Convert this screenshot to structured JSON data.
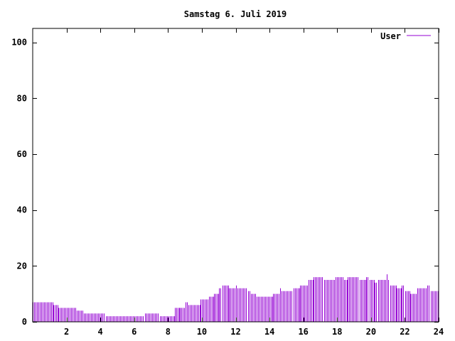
{
  "chart_data": {
    "type": "bar",
    "title": "Samstag 6. Juli 2019",
    "xlabel": "",
    "ylabel": "",
    "xlim": [
      0,
      24
    ],
    "ylim": [
      0,
      105
    ],
    "xticks": [
      2,
      4,
      6,
      8,
      10,
      12,
      14,
      16,
      18,
      20,
      22,
      24
    ],
    "yticks": [
      0,
      20,
      40,
      60,
      80,
      100
    ],
    "grid": false,
    "legend": "top-right",
    "colors": {
      "series": "#9400d3",
      "axis": "#000000",
      "background": "#ffffff"
    },
    "series": [
      {
        "name": "User",
        "segments": [
          {
            "from": 0.0,
            "to": 1.2,
            "value": 7
          },
          {
            "from": 1.2,
            "to": 1.5,
            "value": 6
          },
          {
            "from": 1.5,
            "to": 2.6,
            "value": 5
          },
          {
            "from": 2.6,
            "to": 3.0,
            "value": 4
          },
          {
            "from": 3.0,
            "to": 4.3,
            "value": 3
          },
          {
            "from": 4.3,
            "to": 6.6,
            "value": 2
          },
          {
            "from": 6.6,
            "to": 7.5,
            "value": 3
          },
          {
            "from": 7.5,
            "to": 8.4,
            "value": 2
          },
          {
            "from": 8.4,
            "to": 8.7,
            "value": 5
          },
          {
            "from": 8.7,
            "to": 9.0,
            "value": 5
          },
          {
            "from": 9.0,
            "to": 9.2,
            "value": 7
          },
          {
            "from": 9.2,
            "to": 9.9,
            "value": 6
          },
          {
            "from": 9.9,
            "to": 10.4,
            "value": 8
          },
          {
            "from": 10.4,
            "to": 10.7,
            "value": 9
          },
          {
            "from": 10.7,
            "to": 11.0,
            "value": 10
          },
          {
            "from": 11.0,
            "to": 11.2,
            "value": 12
          },
          {
            "from": 11.2,
            "to": 11.6,
            "value": 13
          },
          {
            "from": 11.6,
            "to": 12.0,
            "value": 12
          },
          {
            "from": 12.0,
            "to": 12.1,
            "value": 13
          },
          {
            "from": 12.1,
            "to": 12.7,
            "value": 12
          },
          {
            "from": 12.7,
            "to": 12.9,
            "value": 11
          },
          {
            "from": 12.9,
            "to": 13.2,
            "value": 10
          },
          {
            "from": 13.2,
            "to": 14.2,
            "value": 9
          },
          {
            "from": 14.2,
            "to": 14.6,
            "value": 10
          },
          {
            "from": 14.6,
            "to": 14.7,
            "value": 12
          },
          {
            "from": 14.7,
            "to": 15.4,
            "value": 11
          },
          {
            "from": 15.4,
            "to": 15.8,
            "value": 12
          },
          {
            "from": 15.8,
            "to": 16.3,
            "value": 13
          },
          {
            "from": 16.3,
            "to": 16.6,
            "value": 15
          },
          {
            "from": 16.6,
            "to": 17.2,
            "value": 16
          },
          {
            "from": 17.2,
            "to": 17.9,
            "value": 15
          },
          {
            "from": 17.9,
            "to": 18.4,
            "value": 16
          },
          {
            "from": 18.4,
            "to": 18.6,
            "value": 15
          },
          {
            "from": 18.6,
            "to": 19.3,
            "value": 16
          },
          {
            "from": 19.3,
            "to": 19.7,
            "value": 15
          },
          {
            "from": 19.7,
            "to": 19.9,
            "value": 16
          },
          {
            "from": 19.9,
            "to": 20.2,
            "value": 15
          },
          {
            "from": 20.2,
            "to": 20.4,
            "value": 14
          },
          {
            "from": 20.4,
            "to": 20.9,
            "value": 15
          },
          {
            "from": 20.9,
            "to": 21.0,
            "value": 17
          },
          {
            "from": 21.0,
            "to": 21.1,
            "value": 15
          },
          {
            "from": 21.1,
            "to": 21.5,
            "value": 13
          },
          {
            "from": 21.5,
            "to": 21.8,
            "value": 12
          },
          {
            "from": 21.8,
            "to": 22.0,
            "value": 13
          },
          {
            "from": 22.0,
            "to": 22.3,
            "value": 11
          },
          {
            "from": 22.3,
            "to": 22.7,
            "value": 10
          },
          {
            "from": 22.7,
            "to": 23.3,
            "value": 12
          },
          {
            "from": 23.3,
            "to": 23.5,
            "value": 13
          },
          {
            "from": 23.5,
            "to": 24.0,
            "value": 11
          }
        ]
      }
    ]
  }
}
